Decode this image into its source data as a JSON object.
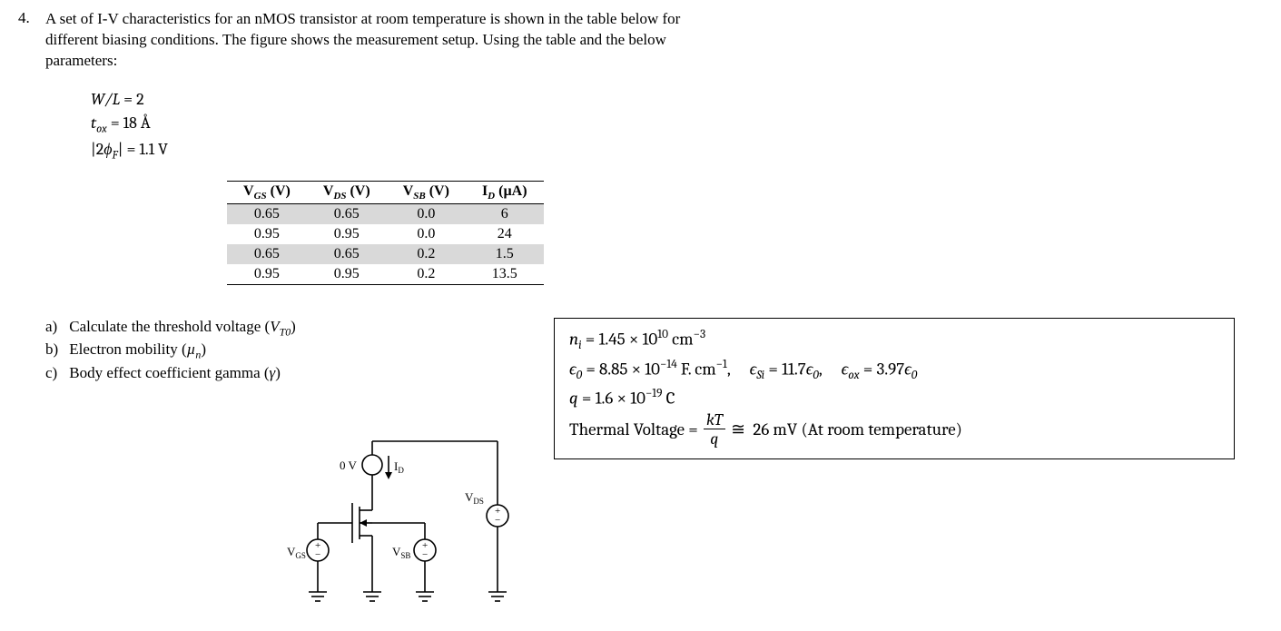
{
  "question_number": "4.",
  "prompt_line1": "A set of I-V characteristics for an nMOS transistor at room temperature is shown in the table below for",
  "prompt_line2": "different biasing conditions. The figure shows the measurement setup. Using the table and the below",
  "prompt_line3": "parameters:",
  "params": {
    "wl_label": "W/L",
    "wl_value": "2",
    "tox_label_prefix": "t",
    "tox_label_sub": "ox",
    "tox_value": "18 Å",
    "phif_label_prefix": "|2",
    "phif_symbol": "ϕ",
    "phif_sub": "F",
    "phif_label_suffix": "|",
    "phif_value": "1.1 V"
  },
  "table": {
    "headers": {
      "vgs": "V",
      "vgs_sub": "GS",
      "vgs_unit": "(V)",
      "vds": "V",
      "vds_sub": "DS",
      "vds_unit": "(V)",
      "vsb": "V",
      "vsb_sub": "SB",
      "vsb_unit": "(V)",
      "id": "I",
      "id_sub": "D",
      "id_unit": "(µA)"
    },
    "rows": [
      {
        "vgs": "0.65",
        "vds": "0.65",
        "vsb": "0.0",
        "id": "6",
        "shaded": true
      },
      {
        "vgs": "0.95",
        "vds": "0.95",
        "vsb": "0.0",
        "id": "24",
        "shaded": false
      },
      {
        "vgs": "0.65",
        "vds": "0.65",
        "vsb": "0.2",
        "id": "1.5",
        "shaded": true
      },
      {
        "vgs": "0.95",
        "vds": "0.95",
        "vsb": "0.2",
        "id": "13.5",
        "shaded": false
      }
    ],
    "shaded_color": "#d9d9d9"
  },
  "subquestions": {
    "a_label": "a)",
    "a_text_pre": "Calculate the threshold voltage  (",
    "a_sym": "V",
    "a_sub": "T0",
    "a_text_post": ")",
    "b_label": "b)",
    "b_text_pre": "Electron mobility  (",
    "b_sym": "µ",
    "b_sub": "n",
    "b_text_post": ")",
    "c_label": "c)",
    "c_text_pre": "Body effect coefficient gamma (",
    "c_sym": "γ",
    "c_text_post": ")"
  },
  "constants": {
    "ni_label": "n",
    "ni_sub": "i",
    "ni_value": "1.45 × 10",
    "ni_exp": "10",
    "ni_unit_pre": " cm",
    "ni_unit_exp": "−3",
    "e0_label": "ϵ",
    "e0_sub": "0",
    "e0_value": "8.85 × 10",
    "e0_exp": "−14",
    "e0_unit": " F. cm",
    "e0_unit_exp": "−1",
    "esi_label": "ϵ",
    "esi_sub": "Si",
    "esi_eq": "11.7",
    "esi_rhs": "ϵ",
    "esi_rhs_sub": "0",
    "eox_label": "ϵ",
    "eox_sub": "ox",
    "eox_eq": "3.97",
    "eox_rhs": "ϵ",
    "eox_rhs_sub": "0",
    "q_label": "q",
    "q_value": "1.6 × 10",
    "q_exp": "−19",
    "q_unit": " C",
    "vt_label": "Thermal Voltage",
    "vt_frac_n": "kT",
    "vt_frac_d": "q",
    "vt_value": "26 mV",
    "vt_note": "(At room temperature)"
  },
  "circuit": {
    "labels": {
      "ov": "0 V",
      "id": "I",
      "id_sub": "D",
      "vgs": "V",
      "vgs_sub": "GS",
      "vsb": "V",
      "vsb_sub": "SB",
      "vds": "V",
      "vds_sub": "DS"
    }
  }
}
